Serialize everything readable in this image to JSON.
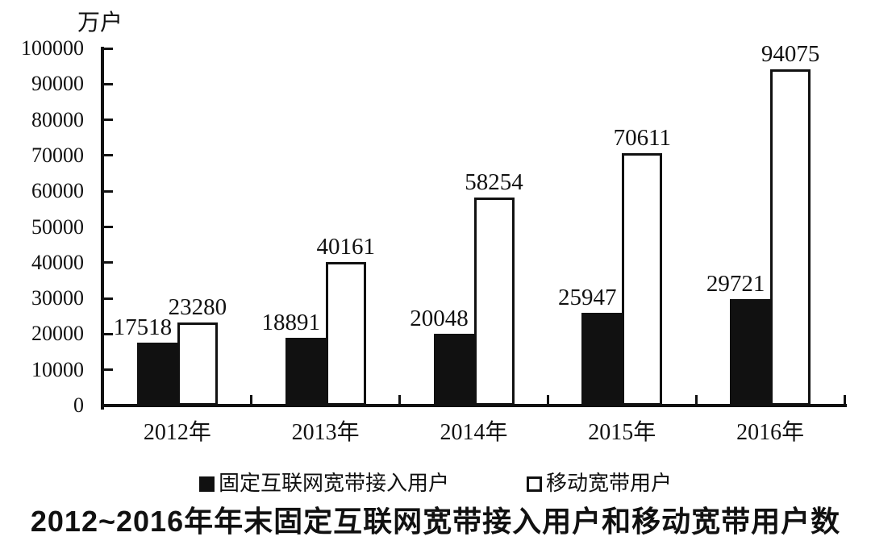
{
  "title": "2012~2016年年末固定互联网宽带接入用户和移动宽带用户数",
  "unit_label": "万户",
  "colors": {
    "bar_filled": "#111111",
    "bar_hollow_fill": "#ffffff",
    "bar_hollow_border": "#111111",
    "axis": "#111111",
    "background": "#ffffff",
    "text": "#111111"
  },
  "chart_data": {
    "type": "bar",
    "categories": [
      "2012年",
      "2013年",
      "2014年",
      "2015年",
      "2016年"
    ],
    "series": [
      {
        "name": "固定互联网宽带接入用户",
        "style": "filled",
        "values": [
          17518,
          18891,
          20048,
          25947,
          29721
        ]
      },
      {
        "name": "移动宽带用户",
        "style": "hollow",
        "values": [
          23280,
          40161,
          58254,
          70611,
          94075
        ]
      }
    ],
    "title": "2012~2016年年末固定互联网宽带接入用户和移动宽带用户数",
    "xlabel": "",
    "ylabel": "万户",
    "ylim": [
      0,
      100000
    ],
    "yticks": [
      0,
      10000,
      20000,
      30000,
      40000,
      50000,
      60000,
      70000,
      80000,
      90000,
      100000
    ],
    "grid": false,
    "data_labels": true,
    "legend_position": "bottom"
  }
}
